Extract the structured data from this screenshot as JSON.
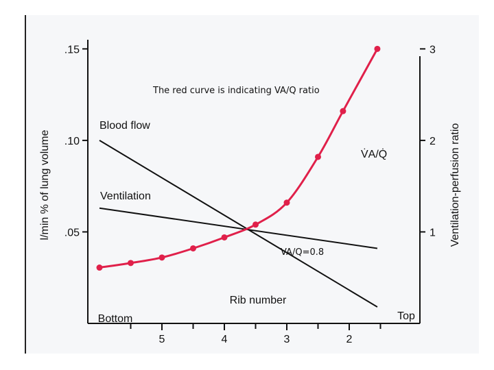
{
  "chart_data": {
    "type": "line",
    "annotation_title": "The red curve is indicating VA/Q ratio",
    "annotation_point": "VA/Q=0.8",
    "xlabel": "Rib number",
    "x_ticks": [
      "5",
      "4",
      "3",
      "2"
    ],
    "x_end_labels": {
      "left": "Bottom",
      "right": "Top"
    },
    "ylabel_left": "l/min % of lung volume",
    "ylabel_right": "Ventilation-perfusion ratio",
    "y_left_ticks": [
      ".15",
      ".10",
      ".05"
    ],
    "y_right_ticks": [
      "3",
      "2",
      "1"
    ],
    "ylim_left": [
      0,
      0.155
    ],
    "ylim_right": [
      0,
      3.1
    ],
    "series": [
      {
        "name": "Blood flow",
        "axis": "left",
        "color": "#111111",
        "x": [
          6.0,
          1.55
        ],
        "y": [
          0.1,
          0.009
        ]
      },
      {
        "name": "Ventilation",
        "axis": "left",
        "color": "#111111",
        "x": [
          6.0,
          1.55
        ],
        "y": [
          0.063,
          0.041
        ]
      },
      {
        "name": "VA/Q",
        "display_name": "V̇A/Q̇",
        "axis": "right",
        "color": "#e0204a",
        "x": [
          6.0,
          5.5,
          5.0,
          4.5,
          4.0,
          3.5,
          3.0,
          2.5,
          2.1,
          1.55
        ],
        "y": [
          0.61,
          0.66,
          0.72,
          0.82,
          0.94,
          1.08,
          1.32,
          1.82,
          2.32,
          3.0
        ]
      }
    ]
  }
}
